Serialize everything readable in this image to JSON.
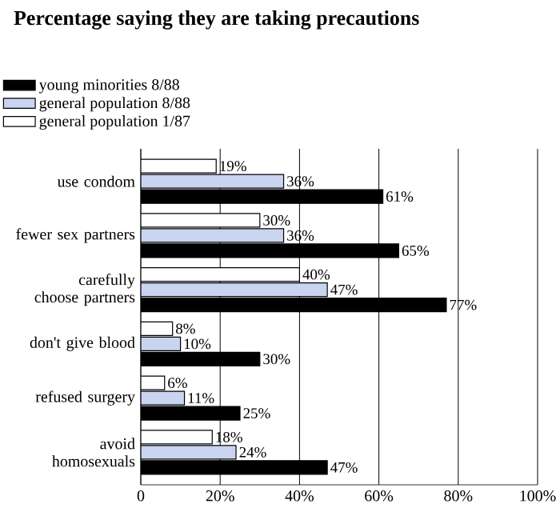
{
  "chart_data": {
    "type": "bar",
    "orientation": "horizontal",
    "title": "Percentage saying they are taking precautions",
    "categories": [
      "use condom",
      "fewer sex partners",
      "carefully choose partners",
      "don't give blood",
      "refused surgery",
      "avoid homosexuals"
    ],
    "series": [
      {
        "name": "young minorities 8/88",
        "color": "#000000",
        "values": [
          61,
          65,
          77,
          30,
          25,
          47
        ],
        "value_labels": [
          "61%",
          "65%",
          "77%",
          "30%",
          "25%",
          "47%"
        ]
      },
      {
        "name": "general population 8/88",
        "color": "#c8d4f0",
        "values": [
          36,
          36,
          47,
          10,
          11,
          24
        ],
        "value_labels": [
          "36%",
          "36%",
          "47%",
          "10%",
          "11%",
          "24%"
        ]
      },
      {
        "name": "general population 1/87",
        "color": "#ffffff",
        "values": [
          19,
          30,
          40,
          8,
          6,
          18
        ],
        "value_labels": [
          "19%",
          "30%",
          "40%",
          "8%",
          "6%",
          "18%"
        ]
      }
    ],
    "xlim": [
      0,
      100
    ],
    "xticks": [
      0,
      {
        "value": 20,
        "label": "20%"
      },
      {
        "value": 40,
        "label": "40%"
      },
      {
        "value": 60,
        "label": "60%"
      },
      {
        "value": 80,
        "label": "80%"
      },
      {
        "value": 100,
        "label": "100%"
      }
    ],
    "grid": "x",
    "legend": "top left"
  }
}
